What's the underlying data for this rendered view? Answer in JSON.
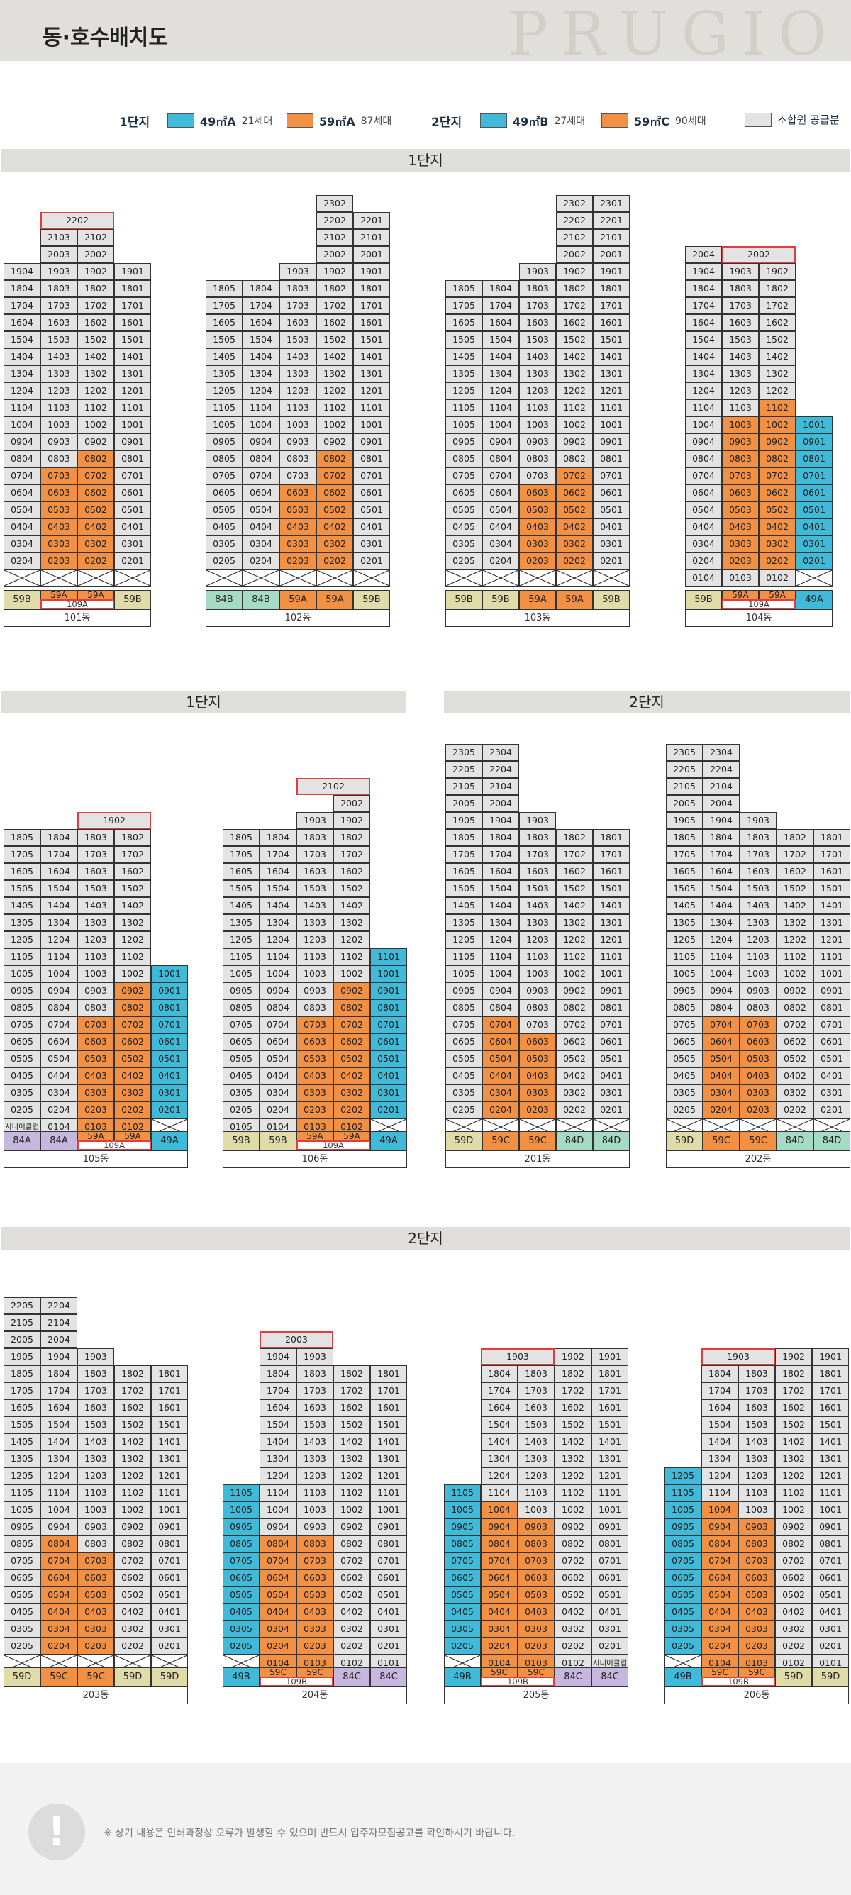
{
  "header": {
    "title": "동·호수배치도",
    "brand": "PRUGIO"
  },
  "legend": [
    {
      "label": "1단지"
    },
    {
      "type": "49㎡A",
      "count": "21세대",
      "color": "#3fbbd9"
    },
    {
      "type": "59㎡A",
      "count": "87세대",
      "color": "#f29044"
    },
    {
      "label": "2단지"
    },
    {
      "type": "49㎡B",
      "count": "27세대",
      "color": "#3fbbd9"
    },
    {
      "type": "59㎡C",
      "count": "90세대",
      "color": "#f29044"
    },
    {
      "type": "조합원 공급분",
      "count": "",
      "color": "#e3e3e3"
    }
  ],
  "bands": [
    "1단지",
    "1단지",
    "2단지",
    "2단지"
  ],
  "colors": {
    "orange": "#f29044",
    "blue": "#3fbbd9",
    "gray": "#e3e3e3",
    "c59B": "#dfdcaa",
    "c84B": "#a5dac6",
    "c84A": "#c6b7df",
    "c59D": "#dfdcaa",
    "c84D": "#a5dac6",
    "c84C": "#c6b7df",
    "red": "#e23d3d"
  },
  "buildings": [
    {
      "name": "101동",
      "base": [
        [
          "59B",
          "59B"
        ],
        [
          "59A",
          "o"
        ],
        [
          "59A",
          "o"
        ],
        [
          "59B",
          "59B"
        ]
      ],
      "sub": "109A"
    },
    {
      "name": "102동",
      "base": [
        [
          "84B",
          "84B"
        ],
        [
          "84B",
          "84B"
        ],
        [
          "59A",
          "o"
        ],
        [
          "59A",
          "o"
        ],
        [
          "59B",
          "59B"
        ]
      ]
    },
    {
      "name": "103동",
      "base": [
        [
          "59B",
          "59B"
        ],
        [
          "59B",
          "59B"
        ],
        [
          "59A",
          "o"
        ],
        [
          "59A",
          "o"
        ],
        [
          "59B",
          "59B"
        ]
      ]
    },
    {
      "name": "104동",
      "base": [
        [
          "59B",
          "59B"
        ],
        [
          "59A",
          "o"
        ],
        [
          "59A",
          "o"
        ],
        [
          "49A",
          "b"
        ]
      ],
      "sub": "109A"
    },
    {
      "name": "105동",
      "base": [
        [
          "84A",
          "84A"
        ],
        [
          "84A",
          "84A"
        ],
        [
          "59A",
          "o"
        ],
        [
          "59A",
          "o"
        ],
        [
          "49A",
          "b"
        ]
      ],
      "sub": "109A"
    },
    {
      "name": "106동",
      "base": [
        [
          "59B",
          "59B"
        ],
        [
          "59B",
          "59B"
        ],
        [
          "59A",
          "o"
        ],
        [
          "59A",
          "o"
        ],
        [
          "49A",
          "b"
        ]
      ],
      "sub": "109A"
    },
    {
      "name": "201동",
      "base": [
        [
          "59D",
          "59D"
        ],
        [
          "59C",
          "o"
        ],
        [
          "59C",
          "o"
        ],
        [
          "84D",
          "84D"
        ],
        [
          "84D",
          "84D"
        ]
      ]
    },
    {
      "name": "202동",
      "base": [
        [
          "59D",
          "59D"
        ],
        [
          "59C",
          "o"
        ],
        [
          "59C",
          "o"
        ],
        [
          "84D",
          "84D"
        ],
        [
          "84D",
          "84D"
        ]
      ]
    },
    {
      "name": "203동",
      "base": [
        [
          "59D",
          "59D"
        ],
        [
          "59C",
          "o"
        ],
        [
          "59C",
          "o"
        ],
        [
          "59D",
          "59D"
        ],
        [
          "59D",
          "59D"
        ]
      ]
    },
    {
      "name": "204동",
      "base": [
        [
          "49B",
          "b"
        ],
        [
          "59C",
          "o"
        ],
        [
          "59C",
          "o"
        ],
        [
          "84C",
          "84C"
        ],
        [
          "84C",
          "84C"
        ]
      ],
      "sub": "109B"
    },
    {
      "name": "205동",
      "base": [
        [
          "49B",
          "b"
        ],
        [
          "59C",
          "o"
        ],
        [
          "59C",
          "o"
        ],
        [
          "84C",
          "84C"
        ],
        [
          "84C",
          "84C"
        ]
      ],
      "sub": "109B"
    },
    {
      "name": "206동",
      "base": [
        [
          "49B",
          "b"
        ],
        [
          "59C",
          "o"
        ],
        [
          "59C",
          "o"
        ],
        [
          "59D",
          "59D"
        ],
        [
          "59D",
          "59D"
        ]
      ],
      "sub": "109B"
    }
  ],
  "special": {
    "senior": "시니어클럽"
  },
  "footer": {
    "note": "※ 상기 내용은 인쇄과정상 오류가 발생할 수 있으며 반드시 입주자모집공고를 확인하시기 바랍니다."
  }
}
